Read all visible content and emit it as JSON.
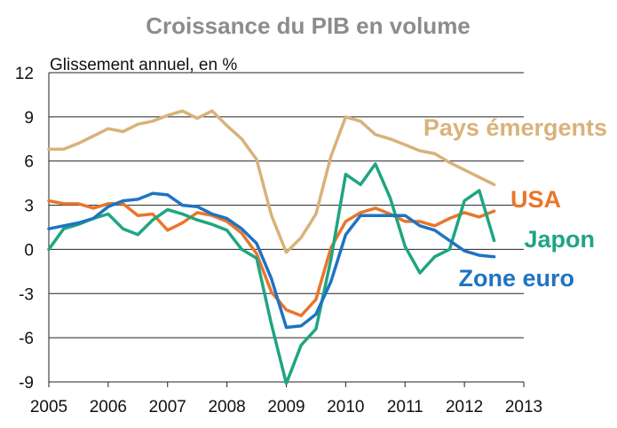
{
  "chart_data": {
    "type": "line",
    "title": "Croissance du PIB en volume",
    "ylabel": "Glissement annuel, en %",
    "xlim": [
      2005,
      2013
    ],
    "ylim": [
      -9,
      12
    ],
    "xticks": [
      "2005",
      "2006",
      "2007",
      "2008",
      "2009",
      "2010",
      "2011",
      "2012",
      "2013"
    ],
    "yticks": [
      "-9",
      "-6",
      "-3",
      "0",
      "3",
      "6",
      "9",
      "12"
    ],
    "grid": "horizontal",
    "series": [
      {
        "name": "Pays émergents",
        "color": "#d9b27a",
        "x": [
          2005.0,
          2005.25,
          2005.5,
          2005.75,
          2006.0,
          2006.25,
          2006.5,
          2006.75,
          2007.0,
          2007.25,
          2007.5,
          2007.75,
          2008.0,
          2008.25,
          2008.5,
          2008.75,
          2009.0,
          2009.25,
          2009.5,
          2009.75,
          2010.0,
          2010.25,
          2010.5,
          2010.75,
          2011.0,
          2011.25,
          2011.5,
          2011.75,
          2012.0,
          2012.25,
          2012.5
        ],
        "values": [
          6.8,
          6.8,
          7.2,
          7.7,
          8.2,
          8.0,
          8.5,
          8.7,
          9.1,
          9.4,
          8.9,
          9.4,
          8.4,
          7.5,
          6.1,
          2.3,
          -0.2,
          0.8,
          2.4,
          6.3,
          9.0,
          8.7,
          7.8,
          7.5,
          7.1,
          6.7,
          6.5,
          5.9,
          5.4,
          4.9,
          4.4
        ]
      },
      {
        "name": "USA",
        "color": "#e8762b",
        "x": [
          2005.0,
          2005.25,
          2005.5,
          2005.75,
          2006.0,
          2006.25,
          2006.5,
          2006.75,
          2007.0,
          2007.25,
          2007.5,
          2007.75,
          2008.0,
          2008.25,
          2008.5,
          2008.75,
          2009.0,
          2009.25,
          2009.5,
          2009.75,
          2010.0,
          2010.25,
          2010.5,
          2010.75,
          2011.0,
          2011.25,
          2011.5,
          2011.75,
          2012.0,
          2012.25,
          2012.5
        ],
        "values": [
          3.3,
          3.1,
          3.1,
          2.8,
          3.1,
          3.1,
          2.3,
          2.4,
          1.3,
          1.8,
          2.5,
          2.3,
          1.9,
          1.1,
          -0.3,
          -2.9,
          -4.1,
          -4.5,
          -3.4,
          0.1,
          1.9,
          2.5,
          2.8,
          2.4,
          1.9,
          1.9,
          1.6,
          2.1,
          2.5,
          2.2,
          2.6
        ]
      },
      {
        "name": "Japon",
        "color": "#1fa582",
        "x": [
          2005.0,
          2005.25,
          2005.5,
          2005.75,
          2006.0,
          2006.25,
          2006.5,
          2006.75,
          2007.0,
          2007.25,
          2007.5,
          2007.75,
          2008.0,
          2008.25,
          2008.5,
          2008.75,
          2009.0,
          2009.25,
          2009.5,
          2009.75,
          2010.0,
          2010.25,
          2010.5,
          2010.75,
          2011.0,
          2011.25,
          2011.5,
          2011.75,
          2012.0,
          2012.25,
          2012.5
        ],
        "values": [
          0.0,
          1.4,
          1.7,
          2.1,
          2.4,
          1.4,
          1.0,
          2.0,
          2.7,
          2.4,
          2.0,
          1.7,
          1.3,
          0.0,
          -0.6,
          -5.1,
          -9.1,
          -6.5,
          -5.4,
          -0.7,
          5.1,
          4.4,
          5.8,
          3.5,
          0.2,
          -1.6,
          -0.5,
          0.0,
          3.3,
          4.0,
          0.6
        ]
      },
      {
        "name": "Zone euro",
        "color": "#1f73c2",
        "x": [
          2005.0,
          2005.25,
          2005.5,
          2005.75,
          2006.0,
          2006.25,
          2006.5,
          2006.75,
          2007.0,
          2007.25,
          2007.5,
          2007.75,
          2008.0,
          2008.25,
          2008.5,
          2008.75,
          2009.0,
          2009.25,
          2009.5,
          2009.75,
          2010.0,
          2010.25,
          2010.5,
          2010.75,
          2011.0,
          2011.25,
          2011.5,
          2011.75,
          2012.0,
          2012.25,
          2012.5
        ],
        "values": [
          1.4,
          1.6,
          1.8,
          2.1,
          2.9,
          3.3,
          3.4,
          3.8,
          3.7,
          3.0,
          2.9,
          2.4,
          2.1,
          1.4,
          0.4,
          -2.0,
          -5.3,
          -5.2,
          -4.4,
          -2.2,
          1.0,
          2.3,
          2.3,
          2.3,
          2.3,
          1.6,
          1.3,
          0.6,
          -0.1,
          -0.4,
          -0.5
        ]
      }
    ]
  }
}
